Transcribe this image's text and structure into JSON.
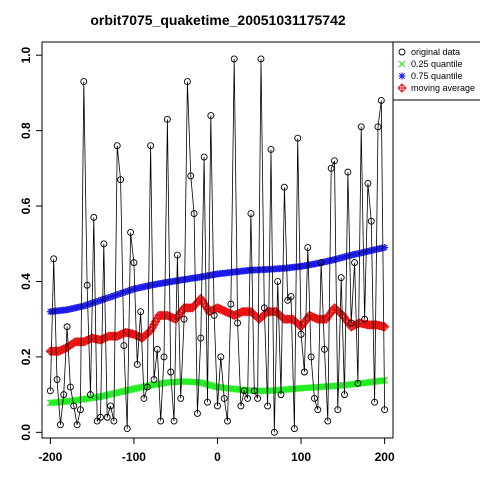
{
  "chart_data": {
    "type": "scatter",
    "title": "orbit7075_quaketime_20051031175742",
    "xlabel": "",
    "ylabel": "",
    "xlim": [
      -210,
      210
    ],
    "ylim": [
      -0.015,
      1.035
    ],
    "x_ticks": [
      -200,
      -100,
      0,
      100,
      200
    ],
    "x_tick_labels": [
      "-200",
      "-100",
      "0",
      "100",
      "200"
    ],
    "y_ticks": [
      0.0,
      0.2,
      0.4,
      0.6,
      0.8,
      1.0
    ],
    "y_tick_labels": [
      "0.0",
      "0.2",
      "0.4",
      "0.6",
      "0.8",
      "1.0"
    ],
    "grid": false,
    "legend_position": "outside-right-top",
    "series": [
      {
        "name": "original data",
        "style": "points-and-line",
        "marker": "open-circle",
        "color": "#000000",
        "x": [
          -200,
          -196,
          -192,
          -188,
          -184,
          -180,
          -176,
          -172,
          -168,
          -164,
          -160,
          -156,
          -152,
          -148,
          -144,
          -140,
          -136,
          -132,
          -128,
          -124,
          -120,
          -116,
          -112,
          -108,
          -104,
          -100,
          -96,
          -92,
          -88,
          -84,
          -80,
          -76,
          -72,
          -68,
          -64,
          -60,
          -56,
          -52,
          -48,
          -44,
          -40,
          -36,
          -32,
          -28,
          -24,
          -20,
          -16,
          -12,
          -8,
          -4,
          0,
          4,
          8,
          12,
          16,
          20,
          24,
          28,
          32,
          36,
          40,
          44,
          48,
          52,
          56,
          60,
          64,
          68,
          72,
          76,
          80,
          84,
          88,
          92,
          96,
          100,
          104,
          108,
          112,
          116,
          120,
          124,
          128,
          132,
          136,
          140,
          144,
          148,
          152,
          156,
          160,
          164,
          168,
          172,
          176,
          180,
          184,
          188,
          192,
          196,
          200
        ],
        "y": [
          0.11,
          0.46,
          0.14,
          0.02,
          0.1,
          0.28,
          0.12,
          0.07,
          0.02,
          0.06,
          0.93,
          0.39,
          0.1,
          0.57,
          0.03,
          0.04,
          0.5,
          0.04,
          0.07,
          0.03,
          0.76,
          0.67,
          0.23,
          0.01,
          0.53,
          0.45,
          0.18,
          0.32,
          0.09,
          0.12,
          0.76,
          0.14,
          0.22,
          0.03,
          0.2,
          0.83,
          0.16,
          0.03,
          0.47,
          0.09,
          0.3,
          0.93,
          0.68,
          0.58,
          0.05,
          0.25,
          0.73,
          0.08,
          0.84,
          0.31,
          0.07,
          0.2,
          0.09,
          0.03,
          0.34,
          0.99,
          0.29,
          0.07,
          0.11,
          0.09,
          0.58,
          0.11,
          0.09,
          0.99,
          0.33,
          0.07,
          0.75,
          0.0,
          0.4,
          0.1,
          0.65,
          0.35,
          0.36,
          0.01,
          0.78,
          0.26,
          0.16,
          0.49,
          0.2,
          0.09,
          0.06,
          0.45,
          0.22,
          0.03,
          0.7,
          0.72,
          0.06,
          0.41,
          0.1,
          0.69,
          0.29,
          0.45,
          0.13,
          0.81,
          0.3,
          0.66,
          0.56,
          0.08,
          0.81,
          0.88,
          0.06
        ]
      },
      {
        "name": "0.25 quantile",
        "style": "markers",
        "marker": "x",
        "color": "#22ee22",
        "x": [
          -200,
          -180,
          -160,
          -140,
          -120,
          -100,
          -80,
          -60,
          -40,
          -20,
          0,
          20,
          40,
          60,
          80,
          100,
          120,
          140,
          160,
          180,
          200
        ],
        "y": [
          0.078,
          0.082,
          0.088,
          0.095,
          0.105,
          0.115,
          0.125,
          0.132,
          0.135,
          0.132,
          0.12,
          0.115,
          0.11,
          0.11,
          0.113,
          0.117,
          0.12,
          0.123,
          0.127,
          0.132,
          0.138
        ]
      },
      {
        "name": "0.75 quantile",
        "style": "markers",
        "marker": "asterisk",
        "color": "#1a1aee",
        "x": [
          -200,
          -180,
          -160,
          -140,
          -120,
          -100,
          -80,
          -60,
          -40,
          -20,
          0,
          20,
          40,
          60,
          80,
          100,
          120,
          140,
          160,
          180,
          200
        ],
        "y": [
          0.32,
          0.325,
          0.335,
          0.35,
          0.365,
          0.38,
          0.39,
          0.398,
          0.405,
          0.412,
          0.42,
          0.425,
          0.43,
          0.432,
          0.435,
          0.44,
          0.448,
          0.458,
          0.47,
          0.48,
          0.49
        ]
      },
      {
        "name": "moving average",
        "style": "markers",
        "marker": "diamond-plus",
        "color": "#ee1111",
        "x": [
          -200,
          -190,
          -180,
          -170,
          -160,
          -150,
          -140,
          -130,
          -120,
          -110,
          -100,
          -90,
          -80,
          -70,
          -60,
          -50,
          -40,
          -30,
          -20,
          -10,
          0,
          10,
          20,
          30,
          40,
          50,
          60,
          70,
          80,
          90,
          100,
          110,
          120,
          130,
          140,
          150,
          160,
          170,
          180,
          190,
          200
        ],
        "y": [
          0.215,
          0.215,
          0.225,
          0.24,
          0.24,
          0.25,
          0.245,
          0.255,
          0.255,
          0.265,
          0.26,
          0.25,
          0.27,
          0.31,
          0.31,
          0.3,
          0.33,
          0.33,
          0.355,
          0.32,
          0.33,
          0.32,
          0.31,
          0.32,
          0.32,
          0.3,
          0.32,
          0.32,
          0.3,
          0.3,
          0.28,
          0.31,
          0.3,
          0.3,
          0.33,
          0.31,
          0.28,
          0.29,
          0.285,
          0.285,
          0.28
        ]
      }
    ]
  }
}
